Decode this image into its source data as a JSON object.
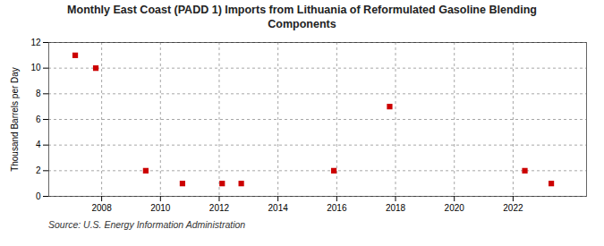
{
  "chart_data": {
    "type": "scatter",
    "title": "Monthly East Coast (PADD 1) Imports from Lithuania of Reformulated Gasoline Blending\nComponents",
    "ylabel": "Thousand Barrels per Day",
    "caption": "Source: U.S. Energy Information Administration",
    "x": [
      2007.1,
      2007.8,
      2009.5,
      2010.75,
      2012.1,
      2012.75,
      2015.9,
      2017.8,
      2022.4,
      2023.3
    ],
    "values": [
      11,
      10,
      2,
      1,
      1,
      1,
      2,
      7,
      2,
      1
    ],
    "color": "#cc0000",
    "marker": "square",
    "xlim": [
      2006.2,
      2024.5
    ],
    "ylim": [
      0,
      12
    ],
    "xticks": [
      2008,
      2010,
      2012,
      2014,
      2016,
      2018,
      2020,
      2022
    ],
    "yticks": [
      0,
      2,
      4,
      6,
      8,
      10,
      12
    ],
    "grid": true
  }
}
